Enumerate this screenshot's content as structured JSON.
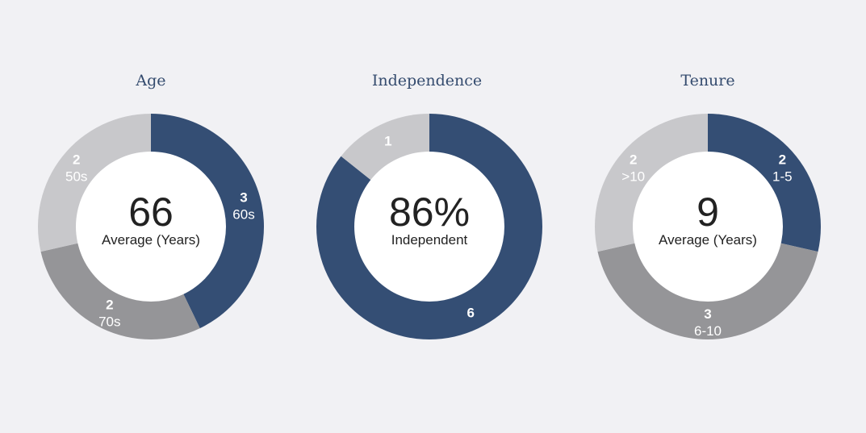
{
  "colors": {
    "background": "#f1f1f4",
    "navy": "#344e74",
    "light_gray": "#c8c8cb",
    "mid_gray": "#959598",
    "center_fill": "#ffffff"
  },
  "chart_data": [
    {
      "type": "donut",
      "title": "Age",
      "center_value": "66",
      "center_label": "Average (Years)",
      "slices": [
        {
          "label": "60s",
          "value": 3,
          "count_label": "3",
          "color": "#344e74"
        },
        {
          "label": "70s",
          "value": 2,
          "count_label": "2",
          "color": "#959598"
        },
        {
          "label": "50s",
          "value": 2,
          "count_label": "2",
          "color": "#c8c8cb"
        }
      ]
    },
    {
      "type": "donut",
      "title": "Independence",
      "center_value": "86%",
      "center_label": "Independent",
      "slices": [
        {
          "label": "",
          "value": 6,
          "count_label": "6",
          "color": "#344e74"
        },
        {
          "label": "",
          "value": 1,
          "count_label": "1",
          "color": "#c8c8cb"
        }
      ]
    },
    {
      "type": "donut",
      "title": "Tenure",
      "center_value": "9",
      "center_label": "Average (Years)",
      "slices": [
        {
          "label": "1-5",
          "value": 2,
          "count_label": "2",
          "color": "#344e74"
        },
        {
          "label": "6-10",
          "value": 3,
          "count_label": "3",
          "color": "#959598"
        },
        {
          "label": ">10",
          "value": 2,
          "count_label": "2",
          "color": "#c8c8cb"
        }
      ]
    }
  ]
}
